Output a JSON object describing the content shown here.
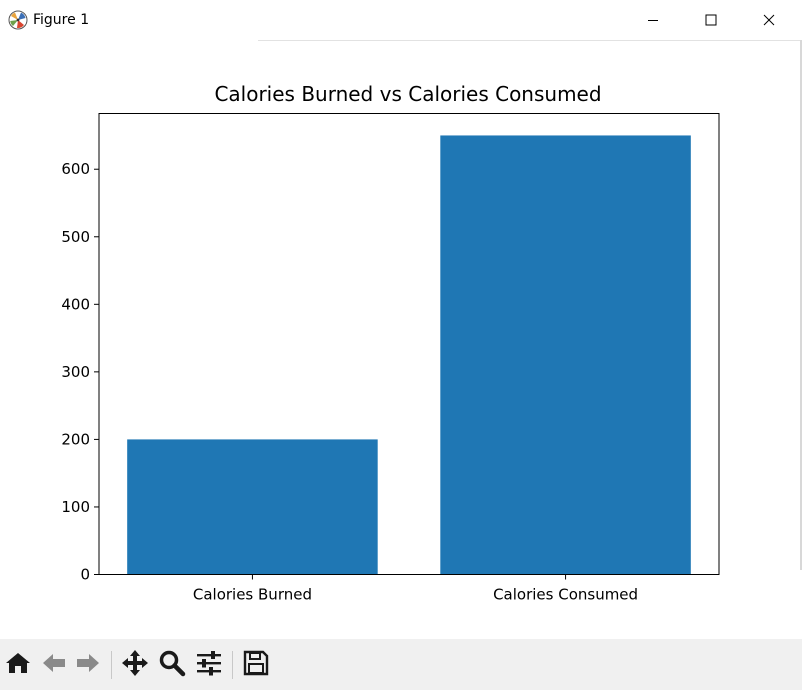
{
  "window": {
    "title": "Figure 1",
    "controls": {
      "minimize_icon": "minimize-icon",
      "maximize_icon": "maximize-icon",
      "close_icon": "close-icon"
    }
  },
  "chart_data": {
    "type": "bar",
    "title": "Calories Burned vs Calories Consumed",
    "categories": [
      "Calories Burned",
      "Calories Consumed"
    ],
    "values": [
      200,
      650
    ],
    "xlabel": "",
    "ylabel": "",
    "ylim": [
      0,
      682.5
    ],
    "yticks": [
      0,
      100,
      200,
      300,
      400,
      500,
      600
    ],
    "bar_color": "#1f77b4",
    "grid": false,
    "legend": "none"
  },
  "toolbar": {
    "buttons": [
      {
        "name": "home-button",
        "icon": "home-icon"
      },
      {
        "name": "back-button",
        "icon": "back-arrow-icon"
      },
      {
        "name": "forward-button",
        "icon": "forward-arrow-icon"
      },
      {
        "name": "pan-button",
        "icon": "move-icon"
      },
      {
        "name": "zoom-button",
        "icon": "magnifier-icon"
      },
      {
        "name": "configure-subplots-button",
        "icon": "sliders-icon"
      },
      {
        "name": "save-button",
        "icon": "floppy-disk-icon"
      }
    ]
  }
}
